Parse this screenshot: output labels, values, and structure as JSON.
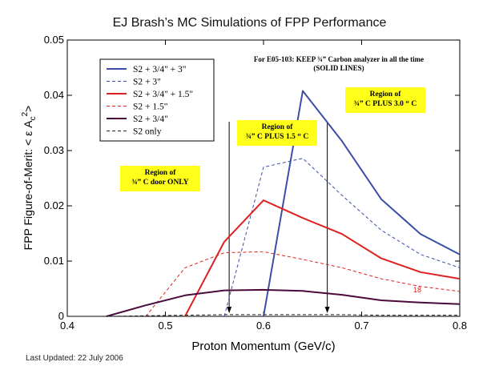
{
  "title": "EJ Brash’s MC Simulations of FPP Performance",
  "footer": "Last Updated: 22 July 2006",
  "note": {
    "line1": "For E05-103:  KEEP ¾” Carbon analyzer in all the time",
    "line2": "(SOLID LINES)"
  },
  "regions": [
    {
      "line1": "Region of",
      "line2": "¾” C door ONLY"
    },
    {
      "line1": "Region of",
      "line2": "¾” C  PLUS 1.5 “ C"
    },
    {
      "line1": "Region of",
      "line2": "¾” C  PLUS 3.0 “ C"
    }
  ],
  "page_number": "18",
  "chart_data": {
    "type": "line",
    "title": "EJ Brash’s MC Simulations of FPP Performance",
    "xlabel": "Proton Momentum (GeV/c)",
    "ylabel": "FPP Figure-of-Merit: < ε A_c²>",
    "xlim": [
      0.4,
      0.8
    ],
    "ylim": [
      0,
      0.05
    ],
    "xticks": [
      "0.4",
      "0.5",
      "0.6",
      "0.7",
      "0.8"
    ],
    "yticks": [
      "0",
      "0.01",
      "0.02",
      "0.03",
      "0.04",
      "0.05"
    ],
    "vlines": [
      0.565,
      0.665
    ],
    "legend_position": "top-left",
    "series": [
      {
        "name": "S2 + 3/4\" + 3\"",
        "color": "#3b4ea8",
        "dash": false,
        "width": 2,
        "x": [
          0.6,
          0.64,
          0.68,
          0.72,
          0.76,
          0.8
        ],
        "y": [
          0,
          0.0408,
          0.0317,
          0.0212,
          0.0149,
          0.0112
        ]
      },
      {
        "name": "S2 + 3\"",
        "color": "#3b4ea8",
        "dash": true,
        "width": 1,
        "x": [
          0.56,
          0.6,
          0.64,
          0.68,
          0.72,
          0.76,
          0.8
        ],
        "y": [
          0,
          0.027,
          0.0286,
          0.0219,
          0.0156,
          0.0112,
          0.0088
        ]
      },
      {
        "name": "S2 + 3/4\" + 1.5\"",
        "color": "#e02020",
        "dash": false,
        "width": 2,
        "x": [
          0.52,
          0.56,
          0.6,
          0.64,
          0.68,
          0.72,
          0.76,
          0.8
        ],
        "y": [
          0,
          0.0135,
          0.021,
          0.0178,
          0.0149,
          0.0105,
          0.008,
          0.0068
        ]
      },
      {
        "name": "S2 + 1.5\"",
        "color": "#e02020",
        "dash": true,
        "width": 1,
        "x": [
          0.48,
          0.52,
          0.56,
          0.6,
          0.64,
          0.68,
          0.72,
          0.76,
          0.8
        ],
        "y": [
          0,
          0.0088,
          0.0115,
          0.0117,
          0.0103,
          0.0088,
          0.0068,
          0.0054,
          0.0045
        ]
      },
      {
        "name": "S2 + 3/4\"",
        "color": "#4a0a3a",
        "dash": false,
        "width": 2,
        "x": [
          0.44,
          0.48,
          0.52,
          0.56,
          0.6,
          0.64,
          0.68,
          0.72,
          0.76,
          0.8
        ],
        "y": [
          0,
          0.002,
          0.0038,
          0.0047,
          0.0048,
          0.0046,
          0.0039,
          0.0029,
          0.0025,
          0.0022
        ]
      },
      {
        "name": "S2 only",
        "color": "#222222",
        "dash": true,
        "width": 1,
        "x": [
          0.44,
          0.48,
          0.52,
          0.56,
          0.6,
          0.64,
          0.68,
          0.72,
          0.76,
          0.8
        ],
        "y": [
          0,
          0.0001,
          0.0002,
          0.0003,
          0.0003,
          0.0003,
          0.0003,
          0.0002,
          0.0002,
          0.0002
        ]
      }
    ]
  }
}
